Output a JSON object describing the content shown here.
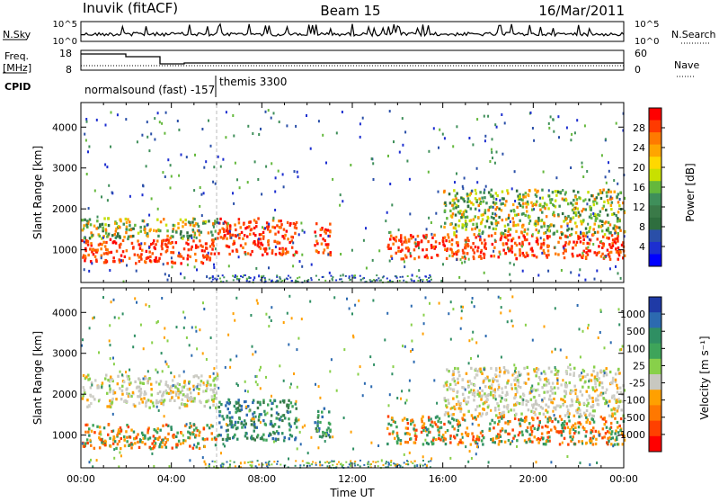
{
  "header": {
    "station": "Inuvik (fitACF)",
    "beam": "Beam 15",
    "date": "16/Mar/2011"
  },
  "strips": {
    "nsky_label": "N.Sky",
    "nsky_ticks": [
      "10^5",
      "10^0"
    ],
    "nsearch_label": "N.Search",
    "nsearch_ticks": [
      "10^5",
      "10^0"
    ],
    "freq_label_line1": "Freq.",
    "freq_label_line2": "[MHz]",
    "freq_ticks": [
      "18",
      "8"
    ],
    "nave_label": "Nave",
    "nave_ticks": [
      "60",
      "0"
    ],
    "cpid_label": "CPID",
    "cpid_mode1": "normalsound (fast) -157",
    "cpid_mode2": "themis 3300"
  },
  "chart_data": [
    {
      "type": "heatmap",
      "name_hidden": true,
      "xlabel": "Time UT",
      "ylabel": "Slant Range [km]",
      "xlim": [
        0,
        24
      ],
      "ylim": [
        200,
        4600
      ],
      "x_ticks": [
        "00:00",
        "04:00",
        "08:00",
        "12:00",
        "16:00",
        "20:00",
        "00:00"
      ],
      "y_ticks": [
        1000,
        2000,
        3000,
        4000
      ],
      "colorbar": {
        "label": "Power [dB]",
        "ticks": [
          "28",
          "24",
          "20",
          "16",
          "12",
          "8",
          "4"
        ],
        "colors": [
          "#ff0000",
          "#ff3a00",
          "#ff7a00",
          "#ffa500",
          "#ffd800",
          "#c8e000",
          "#64b83c",
          "#3f8f5a",
          "#3a7a48",
          "#2e6e3e",
          "#2a4fa8",
          "#1d2fd0",
          "#0000ff"
        ]
      },
      "bands": [
        {
          "t0": 0.0,
          "t1": 6.0,
          "r0": 700,
          "r1": 1300,
          "level": "high"
        },
        {
          "t0": 0.0,
          "t1": 6.0,
          "r0": 1300,
          "r1": 1800,
          "level": "mid"
        },
        {
          "t0": 6.0,
          "t1": 9.5,
          "r0": 900,
          "r1": 1800,
          "level": "high"
        },
        {
          "t0": 10.3,
          "t1": 11.0,
          "r0": 900,
          "r1": 1700,
          "level": "high"
        },
        {
          "t0": 13.5,
          "t1": 24.0,
          "r0": 800,
          "r1": 1400,
          "level": "high"
        },
        {
          "t0": 16.0,
          "t1": 24.0,
          "r0": 1400,
          "r1": 2500,
          "level": "mid"
        }
      ]
    },
    {
      "type": "heatmap",
      "xlabel": "Time UT",
      "ylabel": "Slant Range [km]",
      "xlim": [
        0,
        24
      ],
      "ylim": [
        200,
        4600
      ],
      "x_ticks": [
        "00:00",
        "04:00",
        "08:00",
        "12:00",
        "16:00",
        "20:00",
        "00:00"
      ],
      "y_ticks": [
        1000,
        2000,
        3000,
        4000
      ],
      "colorbar": {
        "label": "Velocity [m s⁻¹]",
        "ticks": [
          "1000",
          "500",
          "100",
          "25",
          "-25",
          "-100",
          "-500",
          "-1000"
        ],
        "colors": [
          "#1f3aa6",
          "#2c6ab0",
          "#2f8f63",
          "#3ea45a",
          "#88d04a",
          "#c8c8c0",
          "#ffa000",
          "#ff7800",
          "#ff4000",
          "#ff0000"
        ]
      },
      "bands": [
        {
          "t0": 0.0,
          "t1": 6.0,
          "r0": 700,
          "r1": 1300,
          "level": "neg"
        },
        {
          "t0": 0.0,
          "t1": 6.0,
          "r0": 1700,
          "r1": 2500,
          "level": "gray"
        },
        {
          "t0": 6.0,
          "t1": 9.5,
          "r0": 900,
          "r1": 1900,
          "level": "pos"
        },
        {
          "t0": 10.3,
          "t1": 11.0,
          "r0": 900,
          "r1": 1700,
          "level": "pos"
        },
        {
          "t0": 13.5,
          "t1": 24.0,
          "r0": 800,
          "r1": 1500,
          "level": "neg"
        },
        {
          "t0": 16.0,
          "t1": 24.0,
          "r0": 1500,
          "r1": 2700,
          "level": "gray"
        }
      ]
    }
  ]
}
